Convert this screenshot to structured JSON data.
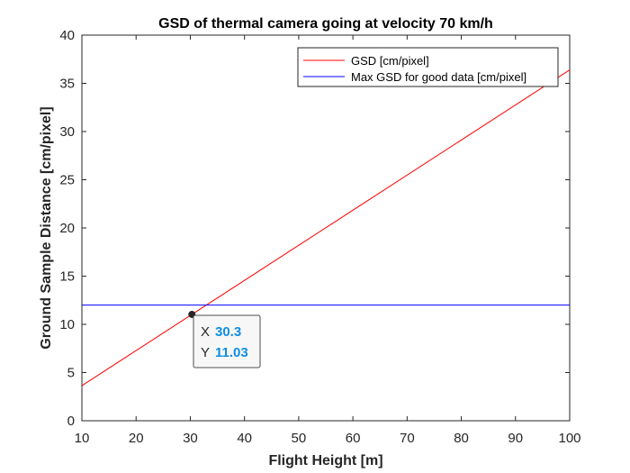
{
  "chart_data": {
    "type": "line",
    "title": "GSD of thermal camera going at velocity 70 km/h",
    "xlabel": "Flight Height [m]",
    "ylabel": "Ground Sample Distance [cm/pixel]",
    "xlim": [
      10,
      100
    ],
    "ylim": [
      0,
      40
    ],
    "xticks": [
      10,
      20,
      30,
      40,
      50,
      60,
      70,
      80,
      90,
      100
    ],
    "yticks": [
      0,
      5,
      10,
      15,
      20,
      25,
      30,
      35,
      40
    ],
    "grid": false,
    "legend_position": "top-right",
    "series": [
      {
        "name": "GSD [cm/pixel]",
        "color": "#ff0000",
        "x": [
          10,
          100
        ],
        "y": [
          3.64,
          36.4
        ]
      },
      {
        "name": "Max GSD for good data [cm/pixel]",
        "color": "#0000ff",
        "x": [
          10,
          100
        ],
        "y": [
          12.0,
          12.0
        ]
      }
    ],
    "datatip": {
      "x_key": "X",
      "x_value": "30.3",
      "y_key": "Y",
      "y_value": "11.03",
      "x": 30.3,
      "y": 11.03
    }
  }
}
